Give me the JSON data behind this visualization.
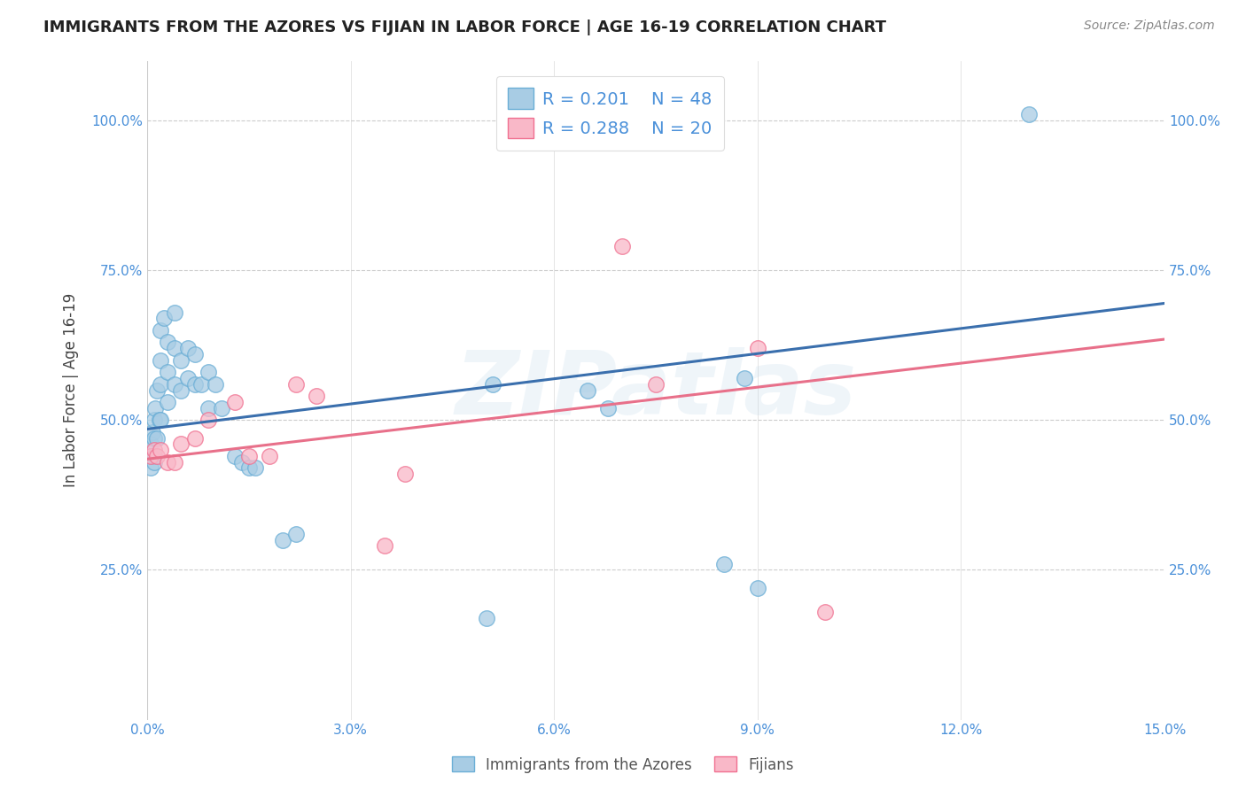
{
  "title": "IMMIGRANTS FROM THE AZORES VS FIJIAN IN LABOR FORCE | AGE 16-19 CORRELATION CHART",
  "source": "Source: ZipAtlas.com",
  "ylabel": "In Labor Force | Age 16-19",
  "xmin": 0.0,
  "xmax": 0.15,
  "ymin": 0.0,
  "ymax": 1.1,
  "xticks": [
    0.0,
    0.03,
    0.06,
    0.09,
    0.12,
    0.15
  ],
  "xticklabels": [
    "0.0%",
    "3.0%",
    "6.0%",
    "9.0%",
    "12.0%",
    "15.0%"
  ],
  "yticks_left": [
    0.25,
    0.5,
    0.75,
    1.0
  ],
  "yticklabels_left": [
    "25.0%",
    "50.0%",
    "75.0%",
    "100.0%"
  ],
  "blue_color": "#a8cce4",
  "blue_edge_color": "#6aaed6",
  "pink_color": "#f9b8c8",
  "pink_edge_color": "#f07090",
  "blue_line_color": "#3a6fad",
  "pink_line_color": "#e8708a",
  "legend_R1": "R = 0.201",
  "legend_N1": "N = 48",
  "legend_R2": "R = 0.288",
  "legend_N2": "N = 20",
  "legend_label1": "Immigrants from the Azores",
  "legend_label2": "Fijians",
  "watermark": "ZIPatlas",
  "blue_x": [
    0.0005,
    0.0005,
    0.0005,
    0.0008,
    0.001,
    0.001,
    0.001,
    0.001,
    0.0012,
    0.0015,
    0.0015,
    0.0018,
    0.002,
    0.002,
    0.002,
    0.002,
    0.0025,
    0.003,
    0.003,
    0.003,
    0.004,
    0.004,
    0.004,
    0.005,
    0.005,
    0.006,
    0.006,
    0.007,
    0.007,
    0.008,
    0.009,
    0.009,
    0.01,
    0.011,
    0.013,
    0.014,
    0.015,
    0.016,
    0.02,
    0.022,
    0.05,
    0.051,
    0.065,
    0.068,
    0.085,
    0.088,
    0.09,
    0.13
  ],
  "blue_y": [
    0.46,
    0.44,
    0.42,
    0.48,
    0.5,
    0.47,
    0.44,
    0.43,
    0.52,
    0.55,
    0.47,
    0.5,
    0.65,
    0.6,
    0.56,
    0.5,
    0.67,
    0.63,
    0.58,
    0.53,
    0.68,
    0.62,
    0.56,
    0.6,
    0.55,
    0.62,
    0.57,
    0.61,
    0.56,
    0.56,
    0.58,
    0.52,
    0.56,
    0.52,
    0.44,
    0.43,
    0.42,
    0.42,
    0.3,
    0.31,
    0.17,
    0.56,
    0.55,
    0.52,
    0.26,
    0.57,
    0.22,
    1.01
  ],
  "pink_x": [
    0.0005,
    0.001,
    0.0015,
    0.002,
    0.003,
    0.004,
    0.005,
    0.007,
    0.009,
    0.013,
    0.015,
    0.018,
    0.022,
    0.025,
    0.035,
    0.038,
    0.07,
    0.075,
    0.09,
    0.1
  ],
  "pink_y": [
    0.44,
    0.45,
    0.44,
    0.45,
    0.43,
    0.43,
    0.46,
    0.47,
    0.5,
    0.53,
    0.44,
    0.44,
    0.56,
    0.54,
    0.29,
    0.41,
    0.79,
    0.56,
    0.62,
    0.18
  ],
  "blue_line_x0": 0.0,
  "blue_line_y0": 0.485,
  "blue_line_x1": 0.15,
  "blue_line_y1": 0.695,
  "pink_line_x0": 0.0,
  "pink_line_y0": 0.435,
  "pink_line_x1": 0.15,
  "pink_line_y1": 0.635
}
